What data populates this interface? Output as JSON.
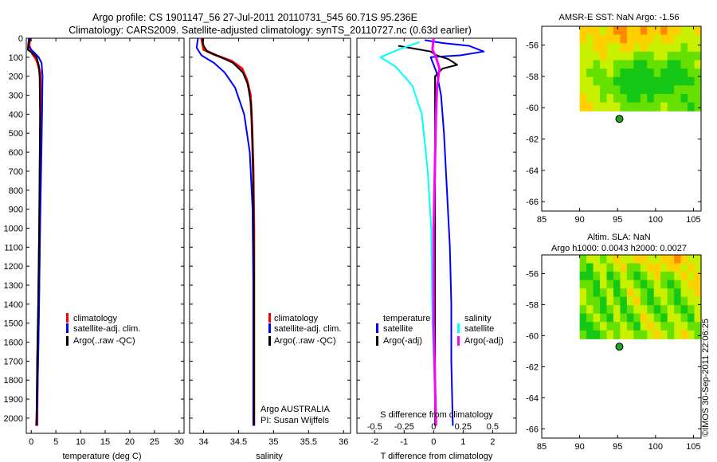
{
  "header": {
    "title_line1": "Argo profile: CS 1901147_56 27-Jul-2011 20110731_545 60.71S 95.236E",
    "title_line2": "Climatology: CARS2009. Satellite-adjusted climatology: synTS_20110727.nc (0.63d earlier)"
  },
  "colors": {
    "climatology": "#ff0000",
    "satellite": "#0000ff",
    "argo": "#000000",
    "sal_satellite": "#00ffff",
    "sal_argo": "#ff00ff",
    "float_marker": "#22a022"
  },
  "chart_data": [
    {
      "id": "temperature",
      "type": "line",
      "xlabel": "temperature (deg C)",
      "ylabel": "",
      "xlim": [
        -1,
        31
      ],
      "ylim": [
        2080,
        0
      ],
      "x_ticks": [
        0,
        5,
        10,
        15,
        20,
        25,
        30
      ],
      "y_ticks": [
        0,
        100,
        200,
        300,
        400,
        500,
        600,
        700,
        800,
        900,
        1000,
        1100,
        1200,
        1300,
        1400,
        1500,
        1600,
        1700,
        1800,
        1900,
        2000
      ],
      "legend": [
        "climatology",
        "satellite-adj. clim.",
        "Argo(..raw -QC)"
      ],
      "series": [
        {
          "name": "climatology",
          "color_key": "climatology",
          "width": 3,
          "points": [
            [
              -0.3,
              0
            ],
            [
              -0.4,
              40
            ],
            [
              0.2,
              80
            ],
            [
              1.0,
              110
            ],
            [
              1.4,
              140
            ],
            [
              1.8,
              180
            ],
            [
              1.9,
              250
            ],
            [
              1.9,
              400
            ],
            [
              1.8,
              700
            ],
            [
              1.7,
              1000
            ],
            [
              1.5,
              1400
            ],
            [
              1.3,
              1700
            ],
            [
              1.2,
              1950
            ],
            [
              1.2,
              2040
            ]
          ]
        },
        {
          "name": "satellite-adj. clim.",
          "color_key": "satellite",
          "width": 2,
          "points": [
            [
              -0.5,
              0
            ],
            [
              -0.6,
              40
            ],
            [
              0.0,
              60
            ],
            [
              0.8,
              80
            ],
            [
              1.5,
              100
            ],
            [
              2.1,
              130
            ],
            [
              2.3,
              200
            ],
            [
              2.2,
              400
            ],
            [
              2.0,
              700
            ],
            [
              1.8,
              1000
            ],
            [
              1.6,
              1400
            ],
            [
              1.4,
              1700
            ],
            [
              1.2,
              1950
            ],
            [
              1.1,
              2040
            ]
          ]
        },
        {
          "name": "Argo(..raw -QC)",
          "color_key": "argo",
          "width": 2,
          "points": [
            [
              -0.2,
              0
            ],
            [
              -0.6,
              30
            ],
            [
              -0.7,
              60
            ],
            [
              0.3,
              80
            ],
            [
              1.1,
              100
            ],
            [
              1.5,
              140
            ],
            [
              1.7,
              200
            ],
            [
              1.8,
              400
            ],
            [
              1.7,
              700
            ],
            [
              1.6,
              1000
            ],
            [
              1.4,
              1400
            ],
            [
              1.2,
              1700
            ],
            [
              1.1,
              1950
            ],
            [
              1.0,
              2040
            ]
          ]
        }
      ]
    },
    {
      "id": "salinity",
      "type": "line",
      "xlabel": "salinity",
      "ylabel": "",
      "xlim": [
        33.8,
        36.1
      ],
      "ylim": [
        2080,
        0
      ],
      "x_ticks": [
        34,
        34.5,
        35,
        35.5,
        36
      ],
      "x_tick_labels": [
        "34",
        "34.5",
        "35",
        "35.5",
        "36"
      ],
      "legend": [
        "climatology",
        "satellite-adj. clim.",
        "Argo(..raw -QC)"
      ],
      "annotations": [
        "Argo AUSTRALIA",
        "PI: Susan Wijffels"
      ],
      "series": [
        {
          "name": "climatology",
          "color_key": "climatology",
          "width": 3,
          "points": [
            [
              33.97,
              0
            ],
            [
              34.0,
              60
            ],
            [
              34.18,
              90
            ],
            [
              34.4,
              120
            ],
            [
              34.55,
              160
            ],
            [
              34.62,
              220
            ],
            [
              34.67,
              300
            ],
            [
              34.69,
              450
            ],
            [
              34.71,
              700
            ],
            [
              34.72,
              1000
            ],
            [
              34.72,
              1500
            ],
            [
              34.72,
              2000
            ],
            [
              34.72,
              2040
            ]
          ]
        },
        {
          "name": "satellite-adj. clim.",
          "color_key": "satellite",
          "width": 2,
          "points": [
            [
              33.92,
              0
            ],
            [
              33.9,
              50
            ],
            [
              33.97,
              90
            ],
            [
              34.15,
              130
            ],
            [
              34.3,
              180
            ],
            [
              34.45,
              260
            ],
            [
              34.58,
              400
            ],
            [
              34.66,
              600
            ],
            [
              34.7,
              900
            ],
            [
              34.71,
              1300
            ],
            [
              34.71,
              1700
            ],
            [
              34.71,
              2000
            ],
            [
              34.71,
              2040
            ]
          ]
        },
        {
          "name": "Argo(..raw -QC)",
          "color_key": "argo",
          "width": 2,
          "points": [
            [
              33.98,
              0
            ],
            [
              34.0,
              40
            ],
            [
              34.05,
              70
            ],
            [
              34.22,
              95
            ],
            [
              34.42,
              130
            ],
            [
              34.56,
              180
            ],
            [
              34.63,
              240
            ],
            [
              34.68,
              350
            ],
            [
              34.7,
              550
            ],
            [
              34.71,
              800
            ],
            [
              34.72,
              1200
            ],
            [
              34.72,
              1700
            ],
            [
              34.72,
              2040
            ]
          ]
        }
      ]
    },
    {
      "id": "difference",
      "type": "line",
      "xlabel": "T difference from climatology",
      "top_label": "S difference from climatology",
      "xlim": [
        -2.6,
        2.8
      ],
      "ylim": [
        2080,
        0
      ],
      "x_ticks": [
        -2,
        -1,
        0,
        1,
        2
      ],
      "s_ticks": [
        -0.5,
        -0.25,
        0,
        0.25,
        0.5
      ],
      "s_tick_labels": [
        "-0.5",
        "-0.25",
        "0",
        "0.25",
        "0.5"
      ],
      "s_scale": 4,
      "legend_temperature_title": "temperature",
      "legend_salinity_title": "salinity",
      "legend_temperature": [
        "satellite",
        "Argo(-adj)"
      ],
      "legend_salinity": [
        "satellite",
        "Argo(-adj)"
      ],
      "series": [
        {
          "name": "T satellite",
          "color_key": "satellite",
          "width": 2,
          "points": [
            [
              -0.3,
              10
            ],
            [
              0.3,
              25
            ],
            [
              1.2,
              40
            ],
            [
              1.7,
              70
            ],
            [
              0.9,
              90
            ],
            [
              -0.1,
              100
            ],
            [
              0.0,
              140
            ],
            [
              0.1,
              180
            ],
            [
              0.25,
              300
            ],
            [
              0.35,
              500
            ],
            [
              0.45,
              800
            ],
            [
              0.55,
              1100
            ],
            [
              0.6,
              1400
            ],
            [
              0.6,
              1700
            ],
            [
              0.65,
              2040
            ]
          ]
        },
        {
          "name": "T Argo(-adj)",
          "color_key": "argo",
          "width": 2,
          "points": [
            [
              -1.2,
              40
            ],
            [
              -0.1,
              70
            ],
            [
              0.1,
              90
            ],
            [
              0.5,
              110
            ],
            [
              0.8,
              140
            ],
            [
              0.3,
              160
            ],
            [
              0.05,
              200
            ],
            [
              0.05,
              400
            ],
            [
              0.05,
              800
            ],
            [
              0.05,
              1200
            ],
            [
              0.05,
              1600
            ],
            [
              0.05,
              2040
            ]
          ]
        },
        {
          "name": "S satellite",
          "color_key": "sal_satellite",
          "width": 2,
          "points": [
            [
              -0.12,
              20
            ],
            [
              -0.3,
              60
            ],
            [
              -0.45,
              100
            ],
            [
              -0.32,
              150
            ],
            [
              -0.18,
              250
            ],
            [
              -0.1,
              400
            ],
            [
              -0.05,
              700
            ],
            [
              -0.02,
              1000
            ],
            [
              -0.01,
              1500
            ],
            [
              0.02,
              2040
            ]
          ]
        },
        {
          "name": "S Argo(-adj)",
          "color_key": "sal_argo",
          "width": 3,
          "points": [
            [
              0.0,
              0
            ],
            [
              -0.01,
              60
            ],
            [
              0.02,
              100
            ],
            [
              0.05,
              160
            ],
            [
              0.03,
              250
            ],
            [
              0.02,
              400
            ],
            [
              0.01,
              700
            ],
            [
              0.0,
              1000
            ],
            [
              0.0,
              1500
            ],
            [
              0.02,
              2040
            ]
          ]
        }
      ]
    },
    {
      "id": "sst_map",
      "type": "heatmap",
      "title": "AMSR-E SST: NaN Argo: -1.56",
      "xlim": [
        85,
        106
      ],
      "ylim": [
        -66.6,
        -54.8
      ],
      "x_ticks": [
        85,
        90,
        95,
        100,
        105
      ],
      "y_ticks": [
        -56,
        -58,
        -60,
        -62,
        -64,
        -66
      ],
      "float_position": [
        95.236,
        -60.71
      ],
      "field_extent": [
        90,
        106,
        -60.2,
        -54.8
      ],
      "palette": [
        "#ff8a00",
        "#ffd000",
        "#c8f000",
        "#66e000",
        "#16c816"
      ],
      "grid": [
        [
          1,
          1,
          1,
          2,
          1,
          0,
          0,
          1,
          1,
          0,
          1,
          1,
          0,
          1,
          1,
          2,
          2,
          1
        ],
        [
          1,
          2,
          1,
          1,
          1,
          1,
          0,
          1,
          1,
          1,
          1,
          2,
          1,
          1,
          2,
          2,
          2,
          2
        ],
        [
          2,
          2,
          1,
          1,
          2,
          2,
          1,
          1,
          2,
          1,
          2,
          2,
          2,
          2,
          2,
          3,
          2,
          2
        ],
        [
          2,
          2,
          2,
          1,
          2,
          2,
          2,
          2,
          3,
          3,
          3,
          2,
          2,
          3,
          3,
          3,
          3,
          3
        ],
        [
          2,
          2,
          3,
          2,
          2,
          3,
          3,
          3,
          4,
          4,
          3,
          3,
          3,
          4,
          4,
          3,
          3,
          2
        ],
        [
          2,
          3,
          3,
          3,
          2,
          3,
          4,
          4,
          4,
          4,
          4,
          3,
          4,
          4,
          4,
          4,
          3,
          3
        ],
        [
          2,
          2,
          3,
          3,
          3,
          4,
          4,
          4,
          4,
          4,
          4,
          4,
          4,
          4,
          4,
          4,
          4,
          3
        ],
        [
          2,
          2,
          2,
          3,
          3,
          3,
          4,
          4,
          4,
          4,
          4,
          4,
          4,
          4,
          3,
          3,
          3,
          3
        ],
        [
          1,
          2,
          2,
          3,
          2,
          3,
          3,
          4,
          4,
          3,
          4,
          3,
          3,
          3,
          3,
          4,
          3,
          3
        ],
        [
          1,
          1,
          2,
          2,
          2,
          2,
          3,
          3,
          3,
          3,
          3,
          3,
          2,
          3,
          3,
          3,
          4,
          3
        ]
      ]
    },
    {
      "id": "sla_map",
      "type": "heatmap",
      "title_line1": "Altim. SLA: NaN",
      "title_line2": "Argo h1000: 0.0043 h2000: 0.0027",
      "xlim": [
        85,
        106
      ],
      "ylim": [
        -66.6,
        -54.8
      ],
      "x_ticks": [
        85,
        90,
        95,
        100,
        105
      ],
      "y_ticks": [
        -56,
        -58,
        -60,
        -62,
        -64,
        -66
      ],
      "float_position": [
        95.236,
        -60.71
      ],
      "field_extent": [
        90,
        106,
        -60.2,
        -54.8
      ],
      "palette": [
        "#ff8a00",
        "#ffd000",
        "#c8f000",
        "#66e000",
        "#16c816"
      ],
      "grid": [
        [
          3,
          2,
          2,
          3,
          2,
          1,
          2,
          2,
          1,
          1,
          2,
          2,
          1,
          1,
          0,
          1,
          2,
          2
        ],
        [
          3,
          4,
          2,
          2,
          3,
          2,
          1,
          3,
          3,
          2,
          1,
          1,
          2,
          1,
          1,
          2,
          1,
          2
        ],
        [
          4,
          4,
          3,
          2,
          4,
          3,
          2,
          3,
          4,
          3,
          2,
          1,
          3,
          3,
          2,
          1,
          2,
          1
        ],
        [
          3,
          3,
          4,
          2,
          3,
          4,
          2,
          2,
          3,
          4,
          3,
          2,
          3,
          4,
          3,
          2,
          1,
          1
        ],
        [
          2,
          3,
          4,
          3,
          2,
          4,
          3,
          1,
          2,
          3,
          4,
          2,
          2,
          3,
          4,
          2,
          2,
          1
        ],
        [
          2,
          3,
          3,
          4,
          2,
          3,
          4,
          2,
          1,
          3,
          4,
          3,
          2,
          3,
          4,
          3,
          2,
          2
        ],
        [
          3,
          2,
          3,
          4,
          3,
          2,
          4,
          3,
          2,
          2,
          3,
          4,
          3,
          2,
          3,
          4,
          3,
          2
        ],
        [
          4,
          3,
          2,
          3,
          4,
          2,
          3,
          4,
          3,
          1,
          2,
          3,
          4,
          2,
          2,
          3,
          4,
          2
        ],
        [
          4,
          4,
          3,
          2,
          3,
          3,
          2,
          3,
          4,
          2,
          1,
          2,
          3,
          3,
          2,
          2,
          3,
          3
        ],
        [
          3,
          4,
          4,
          3,
          2,
          3,
          2,
          2,
          3,
          3,
          2,
          1,
          2,
          3,
          2,
          1,
          2,
          3
        ]
      ]
    }
  ],
  "footer": {
    "credit": "©IMOS 30-Sep-2011 22:06:25"
  }
}
